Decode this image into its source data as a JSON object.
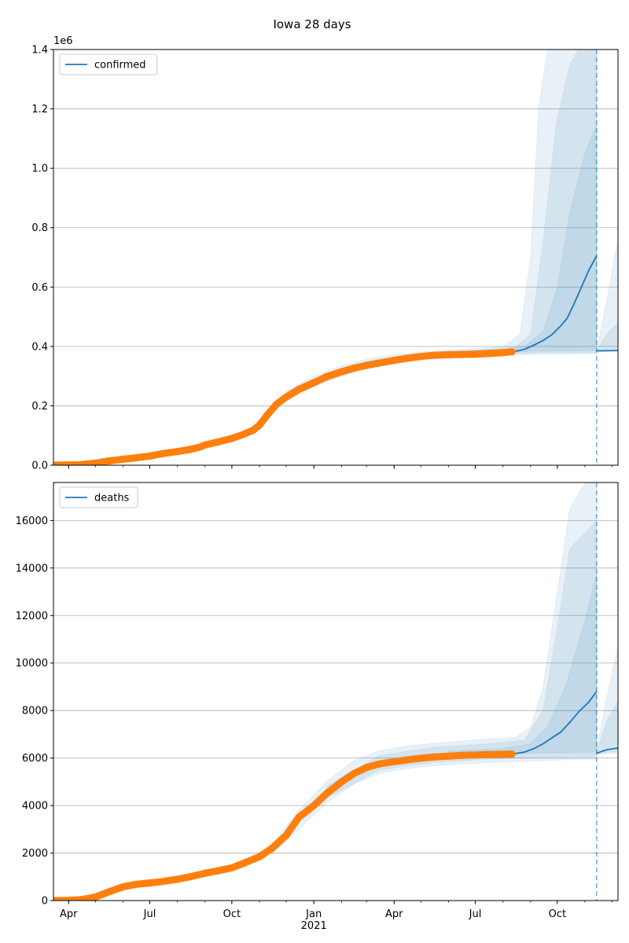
{
  "title": "Iowa 28 days",
  "colors": {
    "model": "#1f77b4",
    "observed": "#ff7f0e",
    "band": "#1f77b4",
    "grid": "#b0b0b0"
  },
  "chart_data": [
    {
      "type": "line",
      "legend": "confirmed",
      "legend_position": "top-left",
      "grid": "horizontal",
      "offset_label": "1e6",
      "ylim": [
        0,
        1.4
      ],
      "yticks": [
        0.0,
        0.2,
        0.4,
        0.6,
        0.8,
        1.0,
        1.2,
        1.4
      ],
      "ytick_labels": [
        "0.0",
        "0.2",
        "0.4",
        "0.6",
        "0.8",
        "1.0",
        "1.2",
        "1.4"
      ],
      "xlim": [
        "2020-03-15",
        "2021-12-08"
      ],
      "xtick_labels": [
        {
          "date": "2020-04-01",
          "label": "Apr"
        },
        {
          "date": "2020-07-01",
          "label": "Jul"
        },
        {
          "date": "2020-10-01",
          "label": "Oct"
        },
        {
          "date": "2021-01-01",
          "label": "Jan"
        },
        {
          "date": "2021-04-01",
          "label": "Apr"
        },
        {
          "date": "2021-07-01",
          "label": "Jul"
        },
        {
          "date": "2021-10-01",
          "label": "Oct"
        }
      ],
      "forecast_date": "2021-11-14",
      "observed": [
        [
          "2020-03-15",
          0.0
        ],
        [
          "2020-04-01",
          0.001
        ],
        [
          "2020-04-15",
          0.002
        ],
        [
          "2020-05-01",
          0.007
        ],
        [
          "2020-05-15",
          0.014
        ],
        [
          "2020-06-01",
          0.02
        ],
        [
          "2020-06-15",
          0.025
        ],
        [
          "2020-07-01",
          0.031
        ],
        [
          "2020-07-15",
          0.039
        ],
        [
          "2020-08-01",
          0.046
        ],
        [
          "2020-08-15",
          0.053
        ],
        [
          "2020-08-25",
          0.06
        ],
        [
          "2020-09-01",
          0.068
        ],
        [
          "2020-09-15",
          0.078
        ],
        [
          "2020-10-01",
          0.09
        ],
        [
          "2020-10-15",
          0.105
        ],
        [
          "2020-10-25",
          0.118
        ],
        [
          "2020-11-01",
          0.135
        ],
        [
          "2020-11-10",
          0.17
        ],
        [
          "2020-11-20",
          0.205
        ],
        [
          "2020-12-01",
          0.23
        ],
        [
          "2020-12-15",
          0.255
        ],
        [
          "2021-01-01",
          0.278
        ],
        [
          "2021-01-15",
          0.298
        ],
        [
          "2021-02-01",
          0.315
        ],
        [
          "2021-02-15",
          0.327
        ],
        [
          "2021-03-01",
          0.336
        ],
        [
          "2021-03-15",
          0.344
        ],
        [
          "2021-04-01",
          0.353
        ],
        [
          "2021-04-15",
          0.36
        ],
        [
          "2021-05-01",
          0.366
        ],
        [
          "2021-05-15",
          0.37
        ],
        [
          "2021-06-01",
          0.372
        ],
        [
          "2021-06-15",
          0.373
        ],
        [
          "2021-07-01",
          0.374
        ],
        [
          "2021-07-15",
          0.376
        ],
        [
          "2021-08-01",
          0.379
        ],
        [
          "2021-08-11",
          0.382
        ]
      ],
      "model_median": [
        [
          "2021-08-11",
          0.382
        ],
        [
          "2021-08-25",
          0.39
        ],
        [
          "2021-09-05",
          0.405
        ],
        [
          "2021-09-15",
          0.42
        ],
        [
          "2021-09-25",
          0.44
        ],
        [
          "2021-10-05",
          0.47
        ],
        [
          "2021-10-12",
          0.495
        ],
        [
          "2021-10-20",
          0.545
        ],
        [
          "2021-10-28",
          0.6
        ],
        [
          "2021-11-05",
          0.655
        ],
        [
          "2021-11-14",
          0.705
        ]
      ],
      "forecast_median": [
        [
          "2021-11-14",
          0.385
        ],
        [
          "2021-12-08",
          0.386
        ]
      ],
      "bands": [
        {
          "lower": [
            [
              "2020-12-01",
              0.215
            ],
            [
              "2021-01-01",
              0.265
            ],
            [
              "2021-02-01",
              0.3
            ],
            [
              "2021-03-01",
              0.325
            ],
            [
              "2021-04-01",
              0.345
            ],
            [
              "2021-05-01",
              0.358
            ],
            [
              "2021-06-01",
              0.365
            ],
            [
              "2021-07-01",
              0.368
            ],
            [
              "2021-08-01",
              0.37
            ],
            [
              "2021-09-01",
              0.373
            ],
            [
              "2021-10-01",
              0.374
            ],
            [
              "2021-11-14",
              0.375
            ]
          ],
          "upper": [
            [
              "2020-12-01",
              0.25
            ],
            [
              "2021-01-01",
              0.3
            ],
            [
              "2021-02-01",
              0.335
            ],
            [
              "2021-03-01",
              0.358
            ],
            [
              "2021-04-01",
              0.372
            ],
            [
              "2021-05-01",
              0.382
            ],
            [
              "2021-06-01",
              0.388
            ],
            [
              "2021-07-01",
              0.392
            ],
            [
              "2021-08-01",
              0.4
            ],
            [
              "2021-08-20",
              0.44
            ],
            [
              "2021-09-01",
              0.7
            ],
            [
              "2021-09-10",
              1.2
            ],
            [
              "2021-09-20",
              1.4
            ],
            [
              "2021-11-14",
              1.4
            ]
          ]
        },
        {
          "lower": [
            [
              "2021-01-01",
              0.27
            ],
            [
              "2021-03-01",
              0.33
            ],
            [
              "2021-05-01",
              0.362
            ],
            [
              "2021-07-01",
              0.372
            ],
            [
              "2021-09-01",
              0.378
            ],
            [
              "2021-11-14",
              0.38
            ]
          ],
          "upper": [
            [
              "2021-01-01",
              0.292
            ],
            [
              "2021-03-01",
              0.35
            ],
            [
              "2021-05-01",
              0.378
            ],
            [
              "2021-07-01",
              0.388
            ],
            [
              "2021-08-15",
              0.398
            ],
            [
              "2021-09-01",
              0.44
            ],
            [
              "2021-09-15",
              0.75
            ],
            [
              "2021-09-30",
              1.15
            ],
            [
              "2021-10-15",
              1.35
            ],
            [
              "2021-10-25",
              1.4
            ],
            [
              "2021-11-14",
              1.4
            ]
          ]
        },
        {
          "lower": [
            [
              "2021-06-01",
              0.372
            ],
            [
              "2021-08-01",
              0.378
            ],
            [
              "2021-09-01",
              0.384
            ],
            [
              "2021-11-14",
              0.386
            ]
          ],
          "upper": [
            [
              "2021-06-01",
              0.382
            ],
            [
              "2021-08-01",
              0.39
            ],
            [
              "2021-08-25",
              0.4
            ],
            [
              "2021-09-15",
              0.45
            ],
            [
              "2021-10-01",
              0.6
            ],
            [
              "2021-10-15",
              0.85
            ],
            [
              "2021-11-01",
              1.05
            ],
            [
              "2021-11-14",
              1.15
            ]
          ]
        }
      ],
      "forecast_bands": [
        {
          "lower": [
            [
              "2021-11-14",
              0.383
            ],
            [
              "2021-12-08",
              0.385
            ]
          ],
          "upper": [
            [
              "2021-11-14",
              0.385
            ],
            [
              "2021-11-25",
              0.55
            ],
            [
              "2021-12-08",
              0.76
            ]
          ]
        },
        {
          "lower": [
            [
              "2021-11-14",
              0.384
            ],
            [
              "2021-12-08",
              0.386
            ]
          ],
          "upper": [
            [
              "2021-11-14",
              0.386
            ],
            [
              "2021-11-25",
              0.44
            ],
            [
              "2021-12-08",
              0.48
            ]
          ]
        }
      ]
    },
    {
      "type": "line",
      "legend": "deaths",
      "legend_position": "top-left",
      "grid": "horizontal",
      "offset_label": "",
      "ylim": [
        0,
        17600
      ],
      "yticks": [
        0,
        2000,
        4000,
        6000,
        8000,
        10000,
        12000,
        14000,
        16000
      ],
      "ytick_labels": [
        "0",
        "2000",
        "4000",
        "6000",
        "8000",
        "10000",
        "12000",
        "14000",
        "16000"
      ],
      "xlim": [
        "2020-03-15",
        "2021-12-08"
      ],
      "xtick_labels": [
        {
          "date": "2020-04-01",
          "label": "Apr"
        },
        {
          "date": "2020-07-01",
          "label": "Jul"
        },
        {
          "date": "2020-10-01",
          "label": "Oct"
        },
        {
          "date": "2021-01-01",
          "label": "Jan"
        },
        {
          "date": "2021-04-01",
          "label": "Apr"
        },
        {
          "date": "2021-07-01",
          "label": "Jul"
        },
        {
          "date": "2021-10-01",
          "label": "Oct"
        }
      ],
      "year_label": "2021",
      "forecast_date": "2021-11-14",
      "observed": [
        [
          "2020-03-15",
          0
        ],
        [
          "2020-04-01",
          5
        ],
        [
          "2020-04-15",
          40
        ],
        [
          "2020-05-01",
          150
        ],
        [
          "2020-05-15",
          350
        ],
        [
          "2020-06-01",
          580
        ],
        [
          "2020-06-15",
          680
        ],
        [
          "2020-07-01",
          740
        ],
        [
          "2020-07-15",
          800
        ],
        [
          "2020-08-01",
          900
        ],
        [
          "2020-08-15",
          1000
        ],
        [
          "2020-09-01",
          1150
        ],
        [
          "2020-09-15",
          1250
        ],
        [
          "2020-10-01",
          1380
        ],
        [
          "2020-10-15",
          1580
        ],
        [
          "2020-11-01",
          1850
        ],
        [
          "2020-11-15",
          2200
        ],
        [
          "2020-12-01",
          2750
        ],
        [
          "2020-12-15",
          3500
        ],
        [
          "2021-01-01",
          4000
        ],
        [
          "2021-01-15",
          4500
        ],
        [
          "2021-02-01",
          5000
        ],
        [
          "2021-02-15",
          5350
        ],
        [
          "2021-03-01",
          5600
        ],
        [
          "2021-03-15",
          5750
        ],
        [
          "2021-04-01",
          5850
        ],
        [
          "2021-04-15",
          5920
        ],
        [
          "2021-05-01",
          5990
        ],
        [
          "2021-05-15",
          6040
        ],
        [
          "2021-06-01",
          6080
        ],
        [
          "2021-06-15",
          6110
        ],
        [
          "2021-07-01",
          6130
        ],
        [
          "2021-07-15",
          6150
        ],
        [
          "2021-08-11",
          6165
        ]
      ],
      "model_median": [
        [
          "2021-08-11",
          6165
        ],
        [
          "2021-08-25",
          6250
        ],
        [
          "2021-09-05",
          6400
        ],
        [
          "2021-09-15",
          6600
        ],
        [
          "2021-09-25",
          6850
        ],
        [
          "2021-10-05",
          7100
        ],
        [
          "2021-10-15",
          7500
        ],
        [
          "2021-10-25",
          7950
        ],
        [
          "2021-11-05",
          8350
        ],
        [
          "2021-11-14",
          8800
        ]
      ],
      "forecast_median": [
        [
          "2021-11-14",
          6200
        ],
        [
          "2021-11-25",
          6350
        ],
        [
          "2021-12-08",
          6420
        ]
      ],
      "bands": [
        {
          "lower": [
            [
              "2020-11-15",
              1950
            ],
            [
              "2020-12-15",
              3000
            ],
            [
              "2021-01-15",
              4100
            ],
            [
              "2021-02-15",
              4900
            ],
            [
              "2021-03-15",
              5350
            ],
            [
              "2021-04-15",
              5550
            ],
            [
              "2021-05-15",
              5680
            ],
            [
              "2021-06-15",
              5750
            ],
            [
              "2021-07-15",
              5800
            ],
            [
              "2021-08-15",
              5850
            ],
            [
              "2021-09-15",
              5900
            ],
            [
              "2021-10-15",
              5930
            ],
            [
              "2021-11-14",
              5950
            ]
          ],
          "upper": [
            [
              "2020-11-15",
              2350
            ],
            [
              "2020-12-15",
              3800
            ],
            [
              "2021-01-15",
              5000
            ],
            [
              "2021-02-15",
              5900
            ],
            [
              "2021-03-15",
              6300
            ],
            [
              "2021-04-15",
              6500
            ],
            [
              "2021-05-15",
              6620
            ],
            [
              "2021-06-15",
              6720
            ],
            [
              "2021-07-15",
              6800
            ],
            [
              "2021-08-15",
              6870
            ],
            [
              "2021-09-01",
              7300
            ],
            [
              "2021-09-15",
              9000
            ],
            [
              "2021-10-01",
              13000
            ],
            [
              "2021-10-15",
              16500
            ],
            [
              "2021-11-01",
              17600
            ],
            [
              "2021-11-14",
              17600
            ]
          ]
        },
        {
          "lower": [
            [
              "2021-01-15",
              4300
            ],
            [
              "2021-03-15",
              5500
            ],
            [
              "2021-05-15",
              5820
            ],
            [
              "2021-07-15",
              5950
            ],
            [
              "2021-09-15",
              6020
            ],
            [
              "2021-11-14",
              6050
            ]
          ],
          "upper": [
            [
              "2021-01-15",
              4800
            ],
            [
              "2021-03-15",
              6100
            ],
            [
              "2021-05-15",
              6450
            ],
            [
              "2021-07-15",
              6600
            ],
            [
              "2021-08-25",
              6750
            ],
            [
              "2021-09-15",
              8000
            ],
            [
              "2021-10-01",
              11500
            ],
            [
              "2021-10-15",
              14800
            ],
            [
              "2021-11-14",
              16000
            ]
          ]
        },
        {
          "lower": [
            [
              "2021-06-01",
              6050
            ],
            [
              "2021-08-01",
              6150
            ],
            [
              "2021-09-01",
              6200
            ],
            [
              "2021-11-14",
              6250
            ]
          ],
          "upper": [
            [
              "2021-06-01",
              6300
            ],
            [
              "2021-08-01",
              6400
            ],
            [
              "2021-09-01",
              6600
            ],
            [
              "2021-09-20",
              7300
            ],
            [
              "2021-10-10",
              9000
            ],
            [
              "2021-11-01",
              11800
            ],
            [
              "2021-11-14",
              13800
            ]
          ]
        }
      ],
      "forecast_bands": [
        {
          "lower": [
            [
              "2021-11-14",
              6150
            ],
            [
              "2021-12-08",
              6200
            ]
          ],
          "upper": [
            [
              "2021-11-14",
              6300
            ],
            [
              "2021-11-25",
              8500
            ],
            [
              "2021-12-08",
              10700
            ]
          ]
        },
        {
          "lower": [
            [
              "2021-11-14",
              6180
            ],
            [
              "2021-12-08",
              6300
            ]
          ],
          "upper": [
            [
              "2021-11-14",
              6250
            ],
            [
              "2021-11-25",
              7500
            ],
            [
              "2021-12-08",
              8400
            ]
          ]
        }
      ]
    }
  ]
}
